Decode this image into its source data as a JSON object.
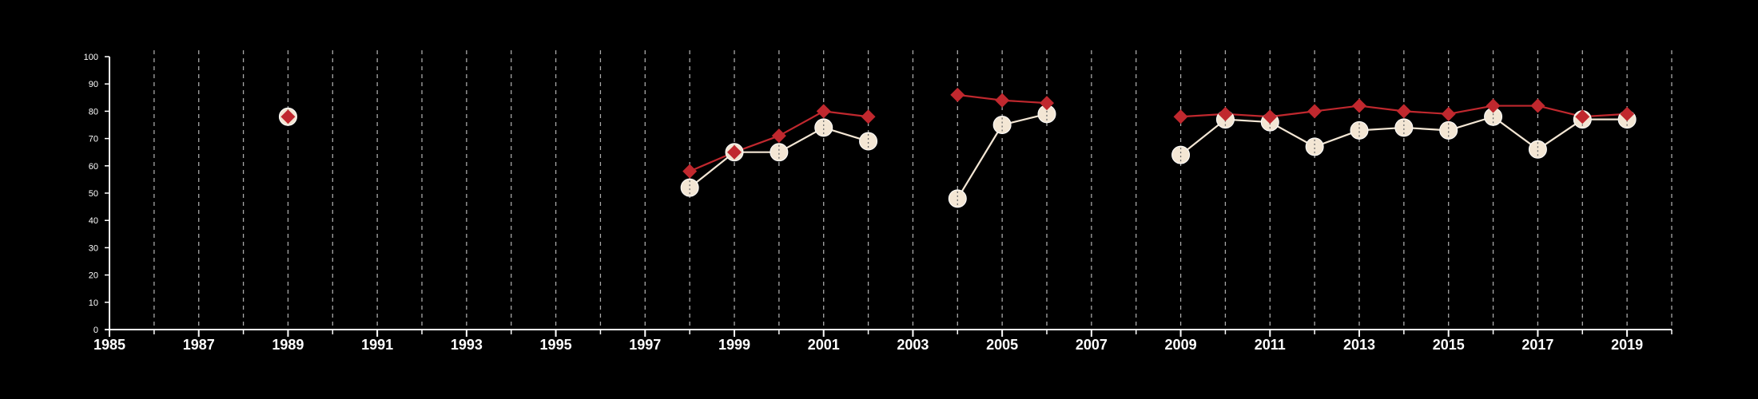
{
  "chart_data": {
    "type": "line",
    "title": "",
    "xlabel": "",
    "ylabel": "",
    "xlim": [
      1985,
      2020
    ],
    "ylim": [
      0,
      100
    ],
    "x_ticks": [
      "1985",
      "1987",
      "1989",
      "1991",
      "1993",
      "1995",
      "1997",
      "1999",
      "2001",
      "2003",
      "2005",
      "2007",
      "2009",
      "2011",
      "2013",
      "2015",
      "2017",
      "2019"
    ],
    "y_ticks": [
      "0",
      "10",
      "20",
      "30",
      "40",
      "50",
      "60",
      "70",
      "80",
      "90",
      "100"
    ],
    "vertical_grid_years": [
      1986,
      1987,
      1988,
      1989,
      1990,
      1991,
      1992,
      1993,
      1994,
      1995,
      1996,
      1997,
      1998,
      1999,
      2000,
      2001,
      2002,
      2003,
      2004,
      2005,
      2006,
      2007,
      2008,
      2009,
      2010,
      2011,
      2012,
      2013,
      2014,
      2015,
      2016,
      2017,
      2018,
      2019,
      2020
    ],
    "grid": "vertical dashed",
    "legend": "none",
    "series": [
      {
        "marker": "circle",
        "color": "#f3e6d4",
        "segments": [
          [
            [
              1989,
              78
            ]
          ],
          [
            [
              1998,
              52
            ],
            [
              1999,
              65
            ],
            [
              2000,
              65
            ],
            [
              2001,
              74
            ],
            [
              2002,
              69
            ]
          ],
          [
            [
              2004,
              48
            ],
            [
              2005,
              75
            ],
            [
              2006,
              79
            ]
          ],
          [
            [
              2009,
              64
            ],
            [
              2010,
              77
            ],
            [
              2011,
              76
            ],
            [
              2012,
              67
            ],
            [
              2013,
              73
            ],
            [
              2014,
              74
            ],
            [
              2015,
              73
            ],
            [
              2016,
              78
            ],
            [
              2017,
              66
            ],
            [
              2018,
              77
            ],
            [
              2019,
              77
            ]
          ]
        ]
      },
      {
        "marker": "diamond",
        "color": "#c0282e",
        "segments": [
          [
            [
              1989,
              78
            ]
          ],
          [
            [
              1998,
              58
            ],
            [
              1999,
              65
            ],
            [
              2000,
              71
            ],
            [
              2001,
              80
            ],
            [
              2002,
              78
            ]
          ],
          [
            [
              2004,
              86
            ],
            [
              2005,
              84
            ],
            [
              2006,
              83
            ]
          ],
          [
            [
              2009,
              78
            ],
            [
              2010,
              79
            ],
            [
              2011,
              78
            ],
            [
              2012,
              80
            ],
            [
              2013,
              82
            ],
            [
              2014,
              80
            ],
            [
              2015,
              79
            ],
            [
              2016,
              82
            ],
            [
              2017,
              82
            ],
            [
              2018,
              78
            ],
            [
              2019,
              79
            ]
          ]
        ]
      }
    ]
  }
}
